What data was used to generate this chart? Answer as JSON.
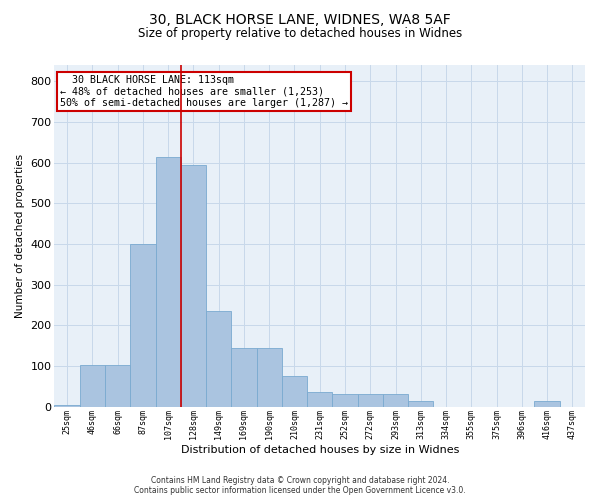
{
  "title_line1": "30, BLACK HORSE LANE, WIDNES, WA8 5AF",
  "title_line2": "Size of property relative to detached houses in Widnes",
  "xlabel": "Distribution of detached houses by size in Widnes",
  "ylabel": "Number of detached properties",
  "categories": [
    "25sqm",
    "46sqm",
    "66sqm",
    "87sqm",
    "107sqm",
    "128sqm",
    "149sqm",
    "169sqm",
    "190sqm",
    "210sqm",
    "231sqm",
    "252sqm",
    "272sqm",
    "293sqm",
    "313sqm",
    "334sqm",
    "355sqm",
    "375sqm",
    "396sqm",
    "416sqm",
    "437sqm"
  ],
  "values": [
    5,
    103,
    103,
    400,
    615,
    595,
    235,
    145,
    145,
    75,
    35,
    30,
    30,
    30,
    15,
    0,
    0,
    0,
    0,
    15,
    0
  ],
  "bar_color": "#aac4e0",
  "bar_edge_color": "#7aaad0",
  "grid_color": "#c8d8ea",
  "background_color": "#e8f0f8",
  "vline_x": 4.5,
  "annotation_text": "  30 BLACK HORSE LANE: 113sqm\n← 48% of detached houses are smaller (1,253)\n50% of semi-detached houses are larger (1,287) →",
  "annotation_box_color": "#ffffff",
  "annotation_box_edge": "#cc0000",
  "ylim": [
    0,
    840
  ],
  "yticks": [
    0,
    100,
    200,
    300,
    400,
    500,
    600,
    700,
    800
  ],
  "footer_line1": "Contains HM Land Registry data © Crown copyright and database right 2024.",
  "footer_line2": "Contains public sector information licensed under the Open Government Licence v3.0."
}
